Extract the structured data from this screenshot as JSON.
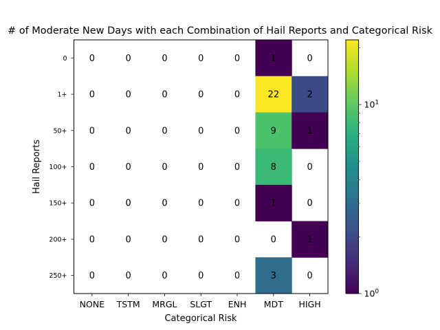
{
  "chart_data": {
    "type": "heatmap",
    "title": "# of Moderate New Days with each Combination of Hail Reports and Categorical Risk",
    "xlabel": "Categorical Risk",
    "ylabel": "Hail Reports",
    "x_categories": [
      "NONE",
      "TSTM",
      "MRGL",
      "SLGT",
      "ENH",
      "MDT",
      "HIGH"
    ],
    "y_categories": [
      "0",
      "1+",
      "50+",
      "100+",
      "150+",
      "200+",
      "250+"
    ],
    "values": [
      [
        0,
        0,
        0,
        0,
        0,
        1,
        0
      ],
      [
        0,
        0,
        0,
        0,
        0,
        22,
        2
      ],
      [
        0,
        0,
        0,
        0,
        0,
        9,
        1
      ],
      [
        0,
        0,
        0,
        0,
        0,
        8,
        0
      ],
      [
        0,
        0,
        0,
        0,
        0,
        1,
        0
      ],
      [
        0,
        0,
        0,
        0,
        0,
        0,
        1
      ],
      [
        0,
        0,
        0,
        0,
        0,
        3,
        0
      ]
    ],
    "colormap": "viridis",
    "color_scale": "log",
    "color_range": [
      1,
      22
    ],
    "zero_color": "#ffffff",
    "colorbar": {
      "major_ticks": [
        {
          "value": 1,
          "label": "10^0"
        },
        {
          "value": 10,
          "label": "10^1"
        }
      ],
      "minor_ticks": [
        2,
        3,
        4,
        5,
        6,
        7,
        8,
        9,
        20
      ]
    }
  }
}
